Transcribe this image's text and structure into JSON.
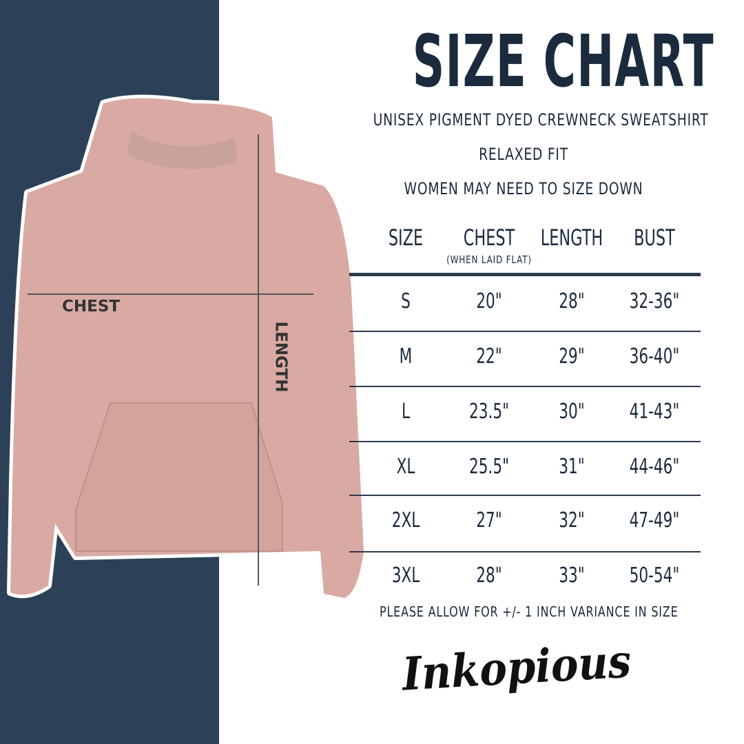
{
  "title": "SIZE CHART",
  "subtitles": [
    "UNISEX PIGMENT DYED CREWNECK SWEATSHIRT",
    "RELAXED FIT",
    "WOMEN MAY NEED TO SIZE DOWN"
  ],
  "diagram": {
    "chest_label": "CHEST",
    "length_label": "LENGTH"
  },
  "table": {
    "headers": [
      "SIZE",
      "CHEST",
      "LENGTH",
      "BUST"
    ],
    "chest_note": "(WHEN LAID FLAT)",
    "rows": [
      [
        "S",
        "20\"",
        "28\"",
        "32-36\""
      ],
      [
        "M",
        "22\"",
        "29\"",
        "36-40\""
      ],
      [
        "L",
        "23.5\"",
        "30\"",
        "41-43\""
      ],
      [
        "XL",
        "25.5\"",
        "31\"",
        "44-46\""
      ],
      [
        "2XL",
        "27\"",
        "32\"",
        "47-49\""
      ],
      [
        "3XL",
        "28\"",
        "33\"",
        "50-54\""
      ]
    ]
  },
  "note": "PLEASE ALLOW FOR +/- 1 INCH VARIANCE IN SIZE",
  "brand": "Inkopious",
  "colors": {
    "navy": "#2c4157",
    "text": "#1b2a3d",
    "hoodie": "#d9aaa3"
  }
}
